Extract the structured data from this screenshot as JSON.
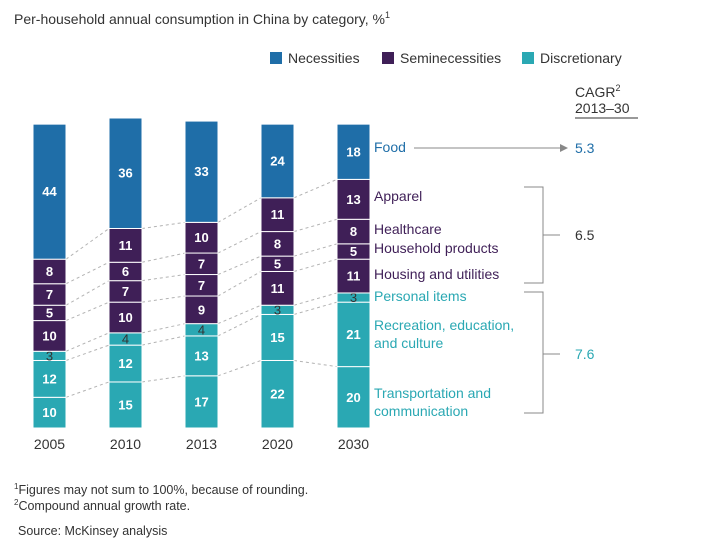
{
  "title": "Per-household annual consumption in China by category, %",
  "title_sup": "1",
  "legend": [
    {
      "label": "Necessities",
      "color": "#1f6ea8"
    },
    {
      "label": "Seminecessities",
      "color": "#3f1f57"
    },
    {
      "label": "Discretionary",
      "color": "#2aa8b3"
    }
  ],
  "cagr_header": {
    "line1": "CAGR",
    "sup": "2",
    "line2": "2013–30"
  },
  "chart_data": {
    "type": "bar",
    "stacked": true,
    "categories": [
      "2005",
      "2010",
      "2013",
      "2020",
      "2030"
    ],
    "series": [
      {
        "name": "Transportation and communication",
        "group": "Discretionary",
        "values": [
          10,
          15,
          17,
          22,
          20
        ]
      },
      {
        "name": "Recreation, education, and culture",
        "group": "Discretionary",
        "values": [
          12,
          12,
          13,
          15,
          21
        ]
      },
      {
        "name": "Personal items",
        "group": "Discretionary",
        "values": [
          3,
          4,
          4,
          3,
          3
        ]
      },
      {
        "name": "Housing and utilities",
        "group": "Seminecessities",
        "values": [
          10,
          10,
          9,
          11,
          11
        ]
      },
      {
        "name": "Household products",
        "group": "Seminecessities",
        "values": [
          5,
          7,
          7,
          5,
          5
        ]
      },
      {
        "name": "Healthcare",
        "group": "Seminecessities",
        "values": [
          7,
          6,
          7,
          8,
          8
        ]
      },
      {
        "name": "Apparel",
        "group": "Seminecessities",
        "values": [
          8,
          11,
          10,
          11,
          13
        ]
      },
      {
        "name": "Food",
        "group": "Necessities",
        "values": [
          44,
          36,
          33,
          24,
          18
        ]
      }
    ],
    "category_labels": [
      {
        "lines": [
          "Food"
        ],
        "group": "Necessities"
      },
      {
        "lines": [
          "Apparel"
        ],
        "group": "Seminecessities"
      },
      {
        "lines": [
          "Healthcare"
        ],
        "group": "Seminecessities"
      },
      {
        "lines": [
          "Household products"
        ],
        "group": "Seminecessities"
      },
      {
        "lines": [
          "Housing and utilities"
        ],
        "group": "Seminecessities"
      },
      {
        "lines": [
          "Personal items"
        ],
        "group": "Discretionary"
      },
      {
        "lines": [
          "Recreation, education,",
          "and culture"
        ],
        "group": "Discretionary"
      },
      {
        "lines": [
          "Transportation and",
          "communication"
        ],
        "group": "Discretionary"
      }
    ],
    "cagr": [
      {
        "group": "Necessities",
        "value": "5.3"
      },
      {
        "group": "Seminecessities",
        "value": "6.5"
      },
      {
        "group": "Discretionary",
        "value": "7.6"
      }
    ]
  },
  "footnotes": [
    {
      "sup": "1",
      "text": "Figures may not sum to 100%, because of rounding."
    },
    {
      "sup": "2",
      "text": "Compound annual growth rate."
    }
  ],
  "source": "Source: McKinsey analysis"
}
